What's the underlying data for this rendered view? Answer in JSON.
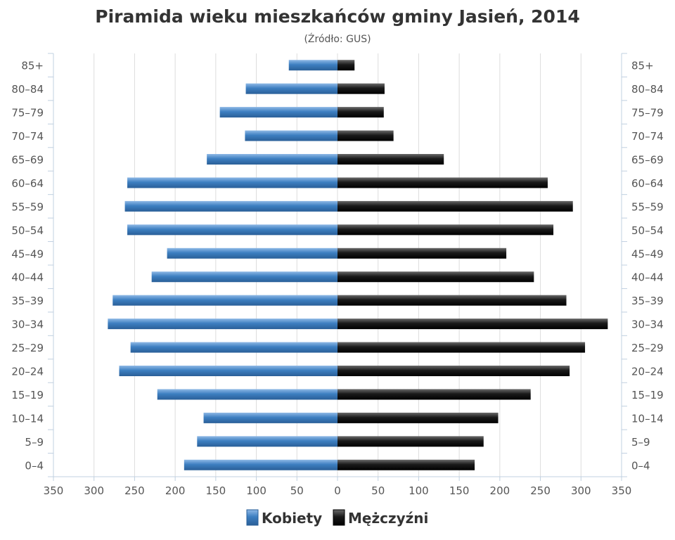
{
  "chart_data": {
    "type": "bar",
    "orientation": "horizontal-population-pyramid",
    "title": "Piramida wieku mieszkańców gminy Jasień, 2014",
    "subtitle": "(Źródło: GUS)",
    "categories": [
      "0-4",
      "5-9",
      "10-14",
      "15-19",
      "20-24",
      "25-29",
      "30-34",
      "35-39",
      "40-44",
      "45-49",
      "50-54",
      "55-59",
      "60-64",
      "65-69",
      "70-74",
      "75-79",
      "80-84",
      "85+"
    ],
    "category_labels": [
      "0–4",
      "5–9",
      "10–14",
      "15–19",
      "20–24",
      "25–29",
      "30–34",
      "35–39",
      "40–44",
      "45–49",
      "50–54",
      "55–59",
      "60–64",
      "65–69",
      "70–74",
      "75–79",
      "80–84",
      "85+"
    ],
    "series": [
      {
        "name": "Kobiety",
        "side": "left",
        "color": "#3d7fc1",
        "values": [
          189,
          173,
          165,
          222,
          269,
          255,
          283,
          277,
          229,
          210,
          259,
          262,
          259,
          161,
          114,
          145,
          113,
          60
        ]
      },
      {
        "name": "Mężczyźni",
        "side": "right",
        "color": "#1a1a1a",
        "values": [
          169,
          180,
          198,
          238,
          286,
          305,
          333,
          282,
          242,
          208,
          266,
          290,
          259,
          131,
          69,
          57,
          58,
          21
        ]
      }
    ],
    "x_ticks": [
      "350",
      "300",
      "250",
      "200",
      "150",
      "100",
      "50",
      "0",
      "50",
      "100",
      "150",
      "200",
      "250",
      "300",
      "350"
    ],
    "xlim": [
      -350,
      350
    ],
    "grid": true,
    "legend_position": "bottom"
  }
}
